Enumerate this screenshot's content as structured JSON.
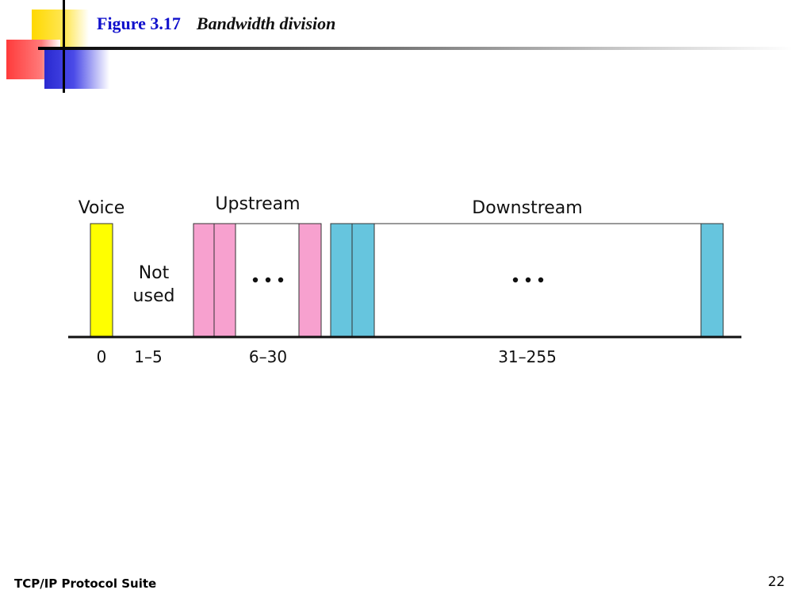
{
  "title": {
    "figure": "Figure 3.17",
    "caption": "Bandwidth division"
  },
  "colors": {
    "voice": "#ffff00",
    "upstream": "#f7a1cf",
    "downstream": "#66c5de"
  },
  "diagram": {
    "groups": {
      "voice": "Voice",
      "upstream": "Upstream",
      "downstream": "Downstream"
    },
    "not_used": [
      "Not",
      "used"
    ],
    "ellipsis": "...",
    "ranges": {
      "voice": "0",
      "not_used": "1–5",
      "upstream": "6–30",
      "downstream": "31–255"
    }
  },
  "footer": {
    "text": "TCP/IP Protocol Suite",
    "page": "22"
  }
}
